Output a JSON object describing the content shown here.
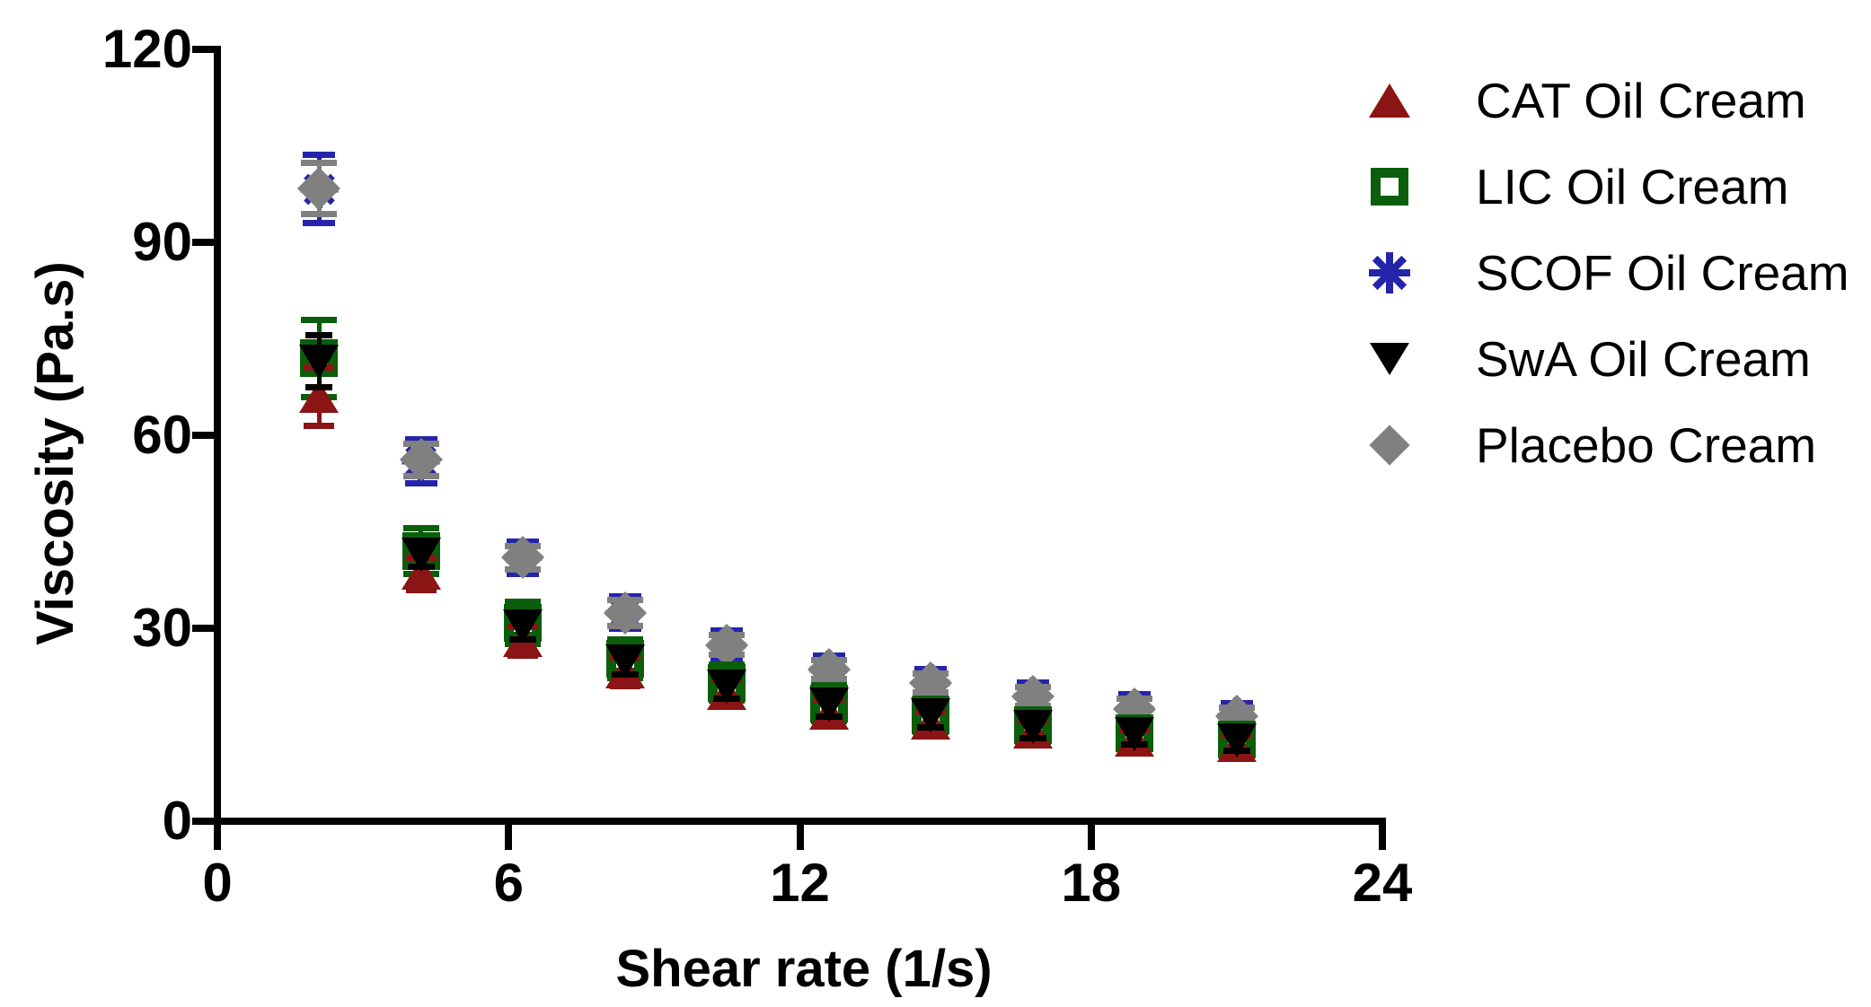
{
  "figure": {
    "background": "#ffffff",
    "axis_color": "#000000",
    "text_color": "#000000"
  },
  "axes": {
    "x": {
      "label": "Shear rate (1/s)",
      "range": [
        0,
        24
      ],
      "ticks": [
        0,
        6,
        12,
        18,
        24
      ]
    },
    "y": {
      "label": "Viscosity (Pa.s)",
      "range": [
        0,
        120
      ],
      "ticks": [
        0,
        30,
        60,
        90,
        120
      ]
    }
  },
  "chart_data": {
    "type": "scatter",
    "title": "",
    "xlabel": "Shear rate (1/s)",
    "ylabel": "Viscosity (Pa.s)",
    "xlim": [
      0,
      24
    ],
    "ylim": [
      0,
      120
    ],
    "grid": false,
    "legend_position": "right",
    "error_bars": true,
    "x": [
      2.1,
      4.2,
      6.3,
      8.4,
      10.5,
      12.6,
      14.7,
      16.8,
      18.9,
      21.0
    ],
    "series": [
      {
        "name": "CAT Oil Cream",
        "marker": "triangle-up",
        "color": "#8B1414",
        "values": [
          66,
          38.5,
          28,
          23.2,
          19.8,
          16.8,
          15.2,
          13.8,
          12.6,
          11.7
        ],
        "errors": [
          4.5,
          2.5,
          2.2,
          2.2,
          2.0,
          2.0,
          1.8,
          1.8,
          1.6,
          1.6
        ]
      },
      {
        "name": "LIC Oil Cream",
        "marker": "square-open",
        "color": "#0B5E0B",
        "values": [
          72,
          42,
          30.8,
          25.3,
          21.5,
          18.3,
          16.5,
          14.9,
          13.7,
          12.7
        ],
        "errors": [
          6.0,
          3.6,
          3.3,
          3.0,
          2.8,
          2.8,
          2.6,
          2.5,
          2.3,
          2.2
        ]
      },
      {
        "name": "SCOF Oil Cream",
        "marker": "asterisk",
        "color": "#2424AA",
        "values": [
          98.3,
          56.0,
          41.0,
          32.4,
          27.4,
          23.6,
          21.5,
          19.4,
          17.5,
          16.3
        ],
        "errors": [
          5.3,
          3.4,
          2.5,
          2.5,
          2.2,
          2.2,
          2.2,
          2.2,
          2.2,
          2.0
        ]
      },
      {
        "name": "SwA Oil Cream",
        "marker": "triangle-down",
        "color": "#000000",
        "values": [
          71.5,
          41.5,
          30.3,
          24.8,
          21.0,
          18.2,
          16.4,
          14.7,
          13.5,
          12.6
        ],
        "errors": [
          4.0,
          2.0,
          2.0,
          2.0,
          2.0,
          2.0,
          1.8,
          1.8,
          1.6,
          1.6
        ]
      },
      {
        "name": "Placebo Cream",
        "marker": "diamond",
        "color": "#808080",
        "values": [
          98.4,
          56.2,
          41.0,
          32.4,
          27.4,
          23.6,
          21.5,
          19.4,
          17.5,
          16.3
        ],
        "errors": [
          4.0,
          2.5,
          1.8,
          2.0,
          1.5,
          1.5,
          1.5,
          1.5,
          1.5,
          1.3
        ]
      }
    ],
    "draw_order": [
      2,
      4,
      1,
      0,
      3
    ],
    "legend_entries": [
      "CAT Oil Cream",
      "LIC Oil Cream",
      "SCOF Oil Cream",
      "SwA Oil Cream",
      "Placebo Cream"
    ]
  }
}
